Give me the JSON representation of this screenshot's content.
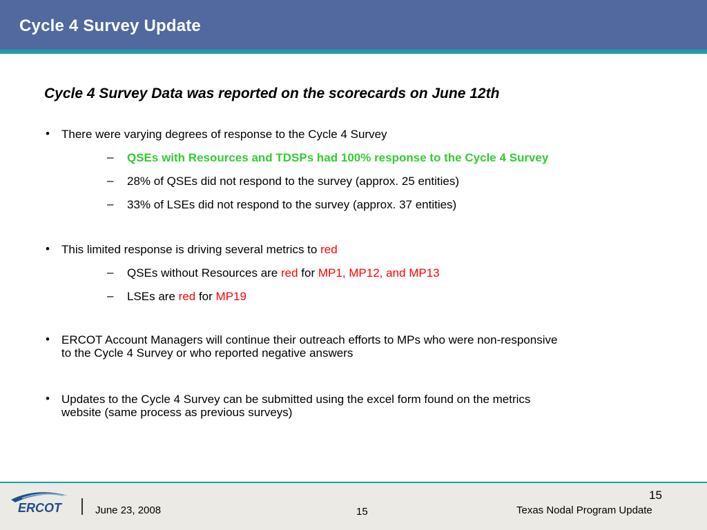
{
  "header": {
    "title": "Cycle 4 Survey Update"
  },
  "main": {
    "subtitle": "Cycle 4 Survey Data was reported on the scorecards on June 12th",
    "b1": "There were varying degrees of response to the Cycle 4 Survey",
    "b1_s1": "QSEs with Resources and TDSPs had 100% response to the Cycle 4 Survey",
    "b1_s2": "28% of QSEs did not respond to the survey (approx. 25 entities)",
    "b1_s3": "33% of LSEs did not respond to the survey (approx. 37 entities)",
    "b2_text": "This limited response is driving several metrics to ",
    "b2_red": "red",
    "b2_s1_a": "QSEs without Resources are ",
    "b2_s1_red": "red",
    "b2_s1_for": " for ",
    "b2_s1_metrics": "MP1, MP12, and MP13",
    "b2_s2_a": "LSEs are ",
    "b2_s2_red": "red",
    "b2_s2_for": " for ",
    "b2_s2_metrics": "MP19",
    "b3_line1": "ERCOT Account Managers will continue their outreach efforts to MPs who were non-responsive",
    "b3_line2": "to the Cycle 4 Survey or who reported negative answers",
    "b4_line1": "Updates to the Cycle 4 Survey can be submitted using the excel form found on the metrics",
    "b4_line2": "website (same process as previous surveys)",
    "bullet_glyph": "•",
    "dash_glyph": "–"
  },
  "footer": {
    "logo_text": "ERCOT",
    "date": "June 23, 2008",
    "page_center": "15",
    "page_top": "15",
    "program": "Texas Nodal Program Update"
  },
  "colors": {
    "header": "#51699f",
    "rule": "#1a9fa8",
    "green": "#33cc33",
    "red": "#ff0000",
    "logo": "#1f4e8c"
  }
}
